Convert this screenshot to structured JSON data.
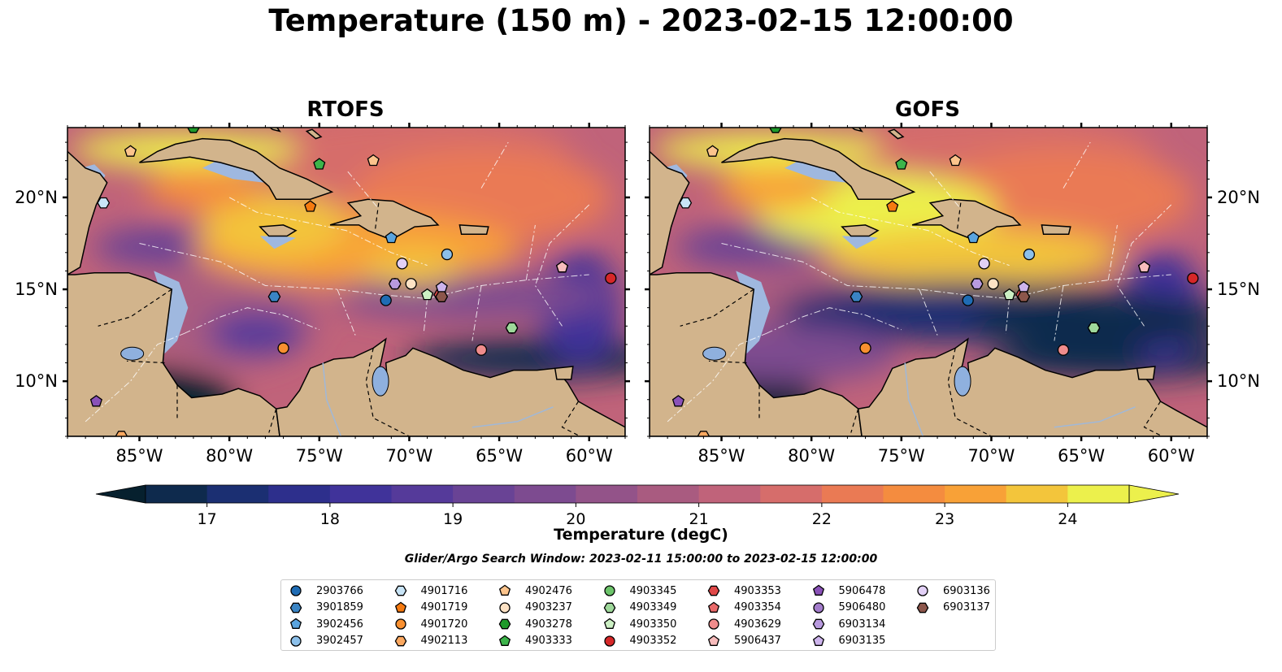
{
  "title": "Temperature (150 m) - 2023-02-15 12:00:00",
  "panels": [
    {
      "title": "RTOFS",
      "variant": "rtofs"
    },
    {
      "title": "GOFS",
      "variant": "gofs"
    }
  ],
  "axes": {
    "lon_ticks": [
      "85°W",
      "80°W",
      "75°W",
      "70°W",
      "65°W",
      "60°W"
    ],
    "lon_values": [
      -85,
      -80,
      -75,
      -70,
      -65,
      -60
    ],
    "lat_ticks": [
      "20°N",
      "15°N",
      "10°N"
    ],
    "lat_values": [
      20,
      15,
      10
    ],
    "lon_range": [
      -89,
      -58
    ],
    "lat_range": [
      7,
      23.8
    ]
  },
  "colorbar": {
    "label": "Temperature (degC)",
    "ticks": [
      "17",
      "18",
      "19",
      "20",
      "21",
      "22",
      "23",
      "24"
    ],
    "tick_values": [
      17,
      18,
      19,
      20,
      21,
      22,
      23,
      24
    ],
    "range": [
      16.5,
      24.5
    ],
    "levels": 16,
    "colors": [
      "#06202e",
      "#0e2a4d",
      "#1b2f72",
      "#2d2f8c",
      "#40339a",
      "#553a9a",
      "#694395",
      "#7d4b90",
      "#935389",
      "#a95b80",
      "#c0637a",
      "#d66d6b",
      "#ea7a54",
      "#f48c3f",
      "#f8a137",
      "#f3c53b",
      "#ecf04c"
    ]
  },
  "search_window": "Glider/Argo Search Window: 2023-02-11 15:00:00 to 2023-02-15 12:00:00",
  "legend": [
    {
      "id": "2903766",
      "marker": "circle",
      "color": "#1f6cb4"
    },
    {
      "id": "3901859",
      "marker": "hexagon",
      "color": "#3a84c4"
    },
    {
      "id": "3902456",
      "marker": "pentagon",
      "color": "#5aa4df"
    },
    {
      "id": "3902457",
      "marker": "circle",
      "color": "#8cc0ea"
    },
    {
      "id": "4901716",
      "marker": "hexagon",
      "color": "#c8e4f6"
    },
    {
      "id": "4901719",
      "marker": "pentagon",
      "color": "#f57a10"
    },
    {
      "id": "4901720",
      "marker": "circle",
      "color": "#f99030"
    },
    {
      "id": "4902113",
      "marker": "hexagon",
      "color": "#fba860"
    },
    {
      "id": "4902476",
      "marker": "pentagon",
      "color": "#fcc48c"
    },
    {
      "id": "4903237",
      "marker": "circle",
      "color": "#fde2c4"
    },
    {
      "id": "4903278",
      "marker": "hexagon",
      "color": "#1e9a2a"
    },
    {
      "id": "4903333",
      "marker": "pentagon",
      "color": "#3cb44a"
    },
    {
      "id": "4903345",
      "marker": "circle",
      "color": "#6cc46a"
    },
    {
      "id": "4903349",
      "marker": "hexagon",
      "color": "#9ed89a"
    },
    {
      "id": "4903350",
      "marker": "pentagon",
      "color": "#ccf0c4"
    },
    {
      "id": "4903352",
      "marker": "circle",
      "color": "#d62728"
    },
    {
      "id": "4903353",
      "marker": "hexagon",
      "color": "#e04848"
    },
    {
      "id": "4903354",
      "marker": "pentagon",
      "color": "#ea6a6a"
    },
    {
      "id": "4903629",
      "marker": "circle",
      "color": "#f08c8c"
    },
    {
      "id": "5906437",
      "marker": "pentagon",
      "color": "#f8bcbc"
    },
    {
      "id": "5906478",
      "marker": "pentagon",
      "color": "#8a52b8"
    },
    {
      "id": "5906480",
      "marker": "circle",
      "color": "#a37ccb"
    },
    {
      "id": "6903134",
      "marker": "hexagon",
      "color": "#b89ade"
    },
    {
      "id": "6903135",
      "marker": "pentagon",
      "color": "#cdb4ec"
    },
    {
      "id": "6903136",
      "marker": "circle",
      "color": "#e2d0f6"
    },
    {
      "id": "6903137",
      "marker": "hexagon",
      "color": "#8c564b"
    }
  ],
  "floats": [
    {
      "id": "2903766",
      "lon": -71.3,
      "lat": 14.4
    },
    {
      "id": "3901859",
      "lon": -77.5,
      "lat": 14.6
    },
    {
      "id": "3902456",
      "lon": -71.0,
      "lat": 17.8
    },
    {
      "id": "3902457",
      "lon": -67.9,
      "lat": 16.9
    },
    {
      "id": "4901716",
      "lon": -87.0,
      "lat": 19.7
    },
    {
      "id": "4901719",
      "lon": -75.5,
      "lat": 19.5
    },
    {
      "id": "4901720",
      "lon": -77.0,
      "lat": 11.8
    },
    {
      "id": "4902113",
      "lon": -86.0,
      "lat": 7.0
    },
    {
      "id": "4902476",
      "lon": -72.0,
      "lat": 22.0
    },
    {
      "id": "4903237",
      "lon": -69.9,
      "lat": 15.3
    },
    {
      "id": "4903278",
      "lon": -82.0,
      "lat": 23.8
    },
    {
      "id": "4903333",
      "lon": -75.0,
      "lat": 21.8
    },
    {
      "id": "4903345",
      "lon": -64.3,
      "lat": 12.9
    },
    {
      "id": "4903349",
      "lon": -64.3,
      "lat": 12.9
    },
    {
      "id": "4903350",
      "lon": -69.0,
      "lat": 14.7
    },
    {
      "id": "4903352",
      "lon": -58.8,
      "lat": 15.6
    },
    {
      "id": "4903353",
      "lon": -68.3,
      "lat": 14.7
    },
    {
      "id": "4903354",
      "lon": -61.5,
      "lat": 16.2
    },
    {
      "id": "4903629",
      "lon": -66.0,
      "lat": 11.7
    },
    {
      "id": "5906437",
      "lon": -61.5,
      "lat": 16.2
    },
    {
      "id": "5906478",
      "lon": -87.4,
      "lat": 8.9
    },
    {
      "id": "5906480",
      "lon": -70.8,
      "lat": 15.3
    },
    {
      "id": "6903134",
      "lon": -70.8,
      "lat": 15.3
    },
    {
      "id": "6903135",
      "lon": -68.2,
      "lat": 15.1
    },
    {
      "id": "6903136",
      "lon": -70.4,
      "lat": 16.4
    },
    {
      "id": "6903137",
      "lon": -68.2,
      "lat": 14.6
    },
    {
      "id": "4902476",
      "lon": -85.5,
      "lat": 22.5
    }
  ]
}
